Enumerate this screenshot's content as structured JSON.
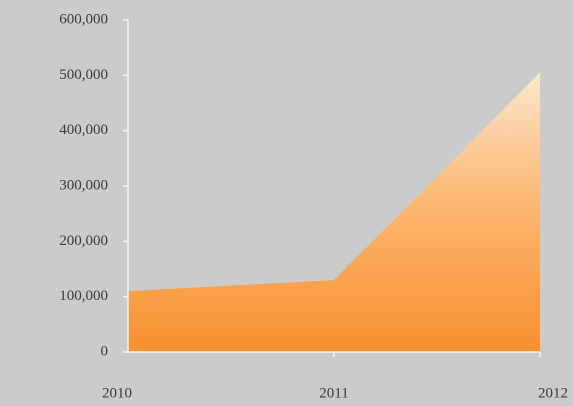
{
  "chart_data": {
    "type": "area",
    "categories": [
      "2010",
      "2011",
      "2012"
    ],
    "values": [
      110000,
      130000,
      505000
    ],
    "color": "#f7902f",
    "ylim": [
      0,
      600000
    ],
    "yticks": [
      0,
      {
        "value": 100000,
        "label": "100,000"
      },
      {
        "value": 200000,
        "label": "200,000"
      },
      {
        "value": 300000,
        "label": "300,000"
      },
      {
        "value": 400000,
        "label": "400,000"
      },
      {
        "value": 500000,
        "label": "500,000"
      },
      {
        "value": 600000,
        "label": "600,000"
      }
    ]
  }
}
